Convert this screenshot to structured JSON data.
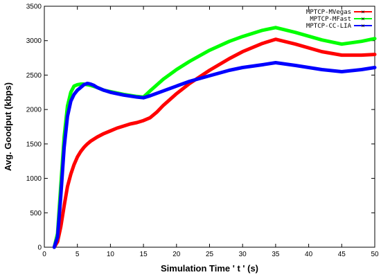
{
  "chart_data": {
    "type": "line",
    "title": "",
    "xlabel": "Simulation Time ' t ' (s)",
    "ylabel": "Avg. Goodput (kbps)",
    "xlim": [
      0,
      50
    ],
    "ylim": [
      0,
      3500
    ],
    "xticks": [
      0,
      5,
      10,
      15,
      20,
      25,
      30,
      35,
      40,
      45,
      50
    ],
    "yticks": [
      0,
      500,
      1000,
      1500,
      2000,
      2500,
      3000,
      3500
    ],
    "grid": false,
    "legend_position": "top-right",
    "series": [
      {
        "name": "MPTCP-MVegas",
        "color": "#ff0000",
        "x": [
          1.5,
          2.0,
          2.5,
          3.0,
          3.5,
          4.0,
          4.5,
          5.0,
          5.5,
          6.0,
          6.5,
          7.0,
          8.0,
          9.0,
          10.0,
          11.0,
          12.0,
          13.0,
          14.0,
          15.0,
          16.0,
          17.0,
          18.0,
          20.0,
          22.0,
          25.0,
          28.0,
          30.0,
          33.0,
          35.0,
          38.0,
          42.0,
          45.0,
          48.0,
          50.0
        ],
        "y": [
          0,
          80,
          300,
          600,
          880,
          1060,
          1200,
          1310,
          1390,
          1450,
          1500,
          1540,
          1600,
          1650,
          1690,
          1730,
          1760,
          1790,
          1810,
          1840,
          1880,
          1960,
          2060,
          2230,
          2380,
          2570,
          2740,
          2840,
          2960,
          3020,
          2950,
          2840,
          2790,
          2790,
          2800
        ]
      },
      {
        "name": "MPTCP-MFast",
        "color": "#00ff00",
        "x": [
          1.5,
          2.0,
          2.5,
          3.0,
          3.5,
          4.0,
          4.5,
          5.0,
          5.5,
          6.0,
          6.5,
          7.0,
          8.0,
          9.0,
          10.0,
          12.0,
          14.0,
          15.0,
          16.0,
          18.0,
          20.0,
          22.0,
          25.0,
          28.0,
          30.0,
          33.0,
          35.0,
          38.0,
          42.0,
          45.0,
          48.0,
          50.0
        ],
        "y": [
          0,
          200,
          900,
          1600,
          2050,
          2250,
          2340,
          2360,
          2370,
          2370,
          2360,
          2350,
          2320,
          2280,
          2260,
          2220,
          2190,
          2180,
          2270,
          2440,
          2580,
          2700,
          2860,
          2990,
          3060,
          3150,
          3190,
          3120,
          3010,
          2950,
          2990,
          3030
        ]
      },
      {
        "name": "MPTCP-CC-LIA",
        "color": "#0000ff",
        "x": [
          1.5,
          2.0,
          2.5,
          3.0,
          3.5,
          4.0,
          4.5,
          5.0,
          5.5,
          6.0,
          6.5,
          7.0,
          7.5,
          8.0,
          9.0,
          10.0,
          12.0,
          14.0,
          15.0,
          16.0,
          18.0,
          20.0,
          22.0,
          25.0,
          28.0,
          30.0,
          33.0,
          35.0,
          38.0,
          42.0,
          45.0,
          48.0,
          50.0
        ],
        "y": [
          0,
          150,
          750,
          1450,
          1900,
          2120,
          2220,
          2280,
          2320,
          2360,
          2380,
          2370,
          2350,
          2320,
          2280,
          2250,
          2210,
          2180,
          2170,
          2200,
          2270,
          2340,
          2410,
          2490,
          2570,
          2610,
          2650,
          2680,
          2640,
          2580,
          2550,
          2580,
          2610
        ]
      }
    ]
  }
}
